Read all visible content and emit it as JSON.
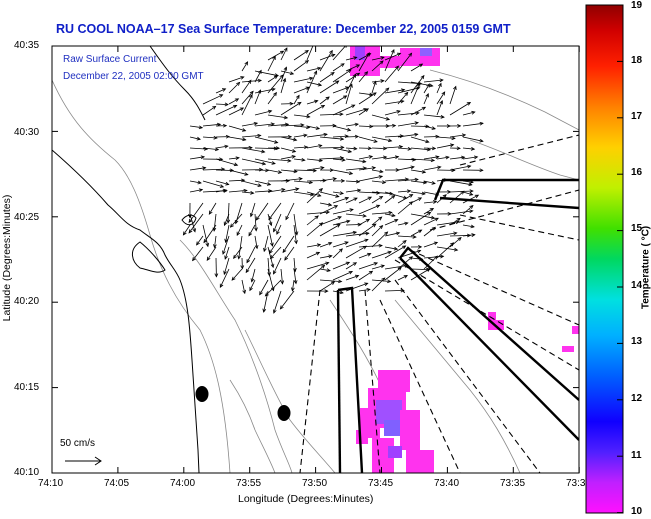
{
  "title": "RU COOL   NOAA–17  Sea Surface Temperature:  December 22, 2005 0159 GMT",
  "inset": {
    "line1": "Raw Surface Current",
    "line2": "December 22, 2005 02:00 GMT"
  },
  "axes": {
    "xlabel": "Longitude (Degrees:Minutes)",
    "ylabel": "Latitude (Degrees:Minutes)",
    "xticks": [
      "74:10",
      "74:05",
      "74:00",
      "73:55",
      "73:50",
      "73:45",
      "73:40",
      "73:35",
      "73:3"
    ],
    "yticks": [
      "40:35",
      "40:30",
      "40:25",
      "40:20",
      "40:15",
      "40:10"
    ]
  },
  "scale_label": "50 cm/s",
  "colorbar": {
    "label": "Temperature ( °C)",
    "ticks": [
      "19",
      "18",
      "17",
      "16",
      "15",
      "14",
      "13",
      "12",
      "11",
      "10"
    ],
    "range": [
      10,
      19
    ]
  },
  "colors": {
    "title": "#1020c8",
    "inset": "#2030c0",
    "sst_patch": "#ff33ee"
  }
}
